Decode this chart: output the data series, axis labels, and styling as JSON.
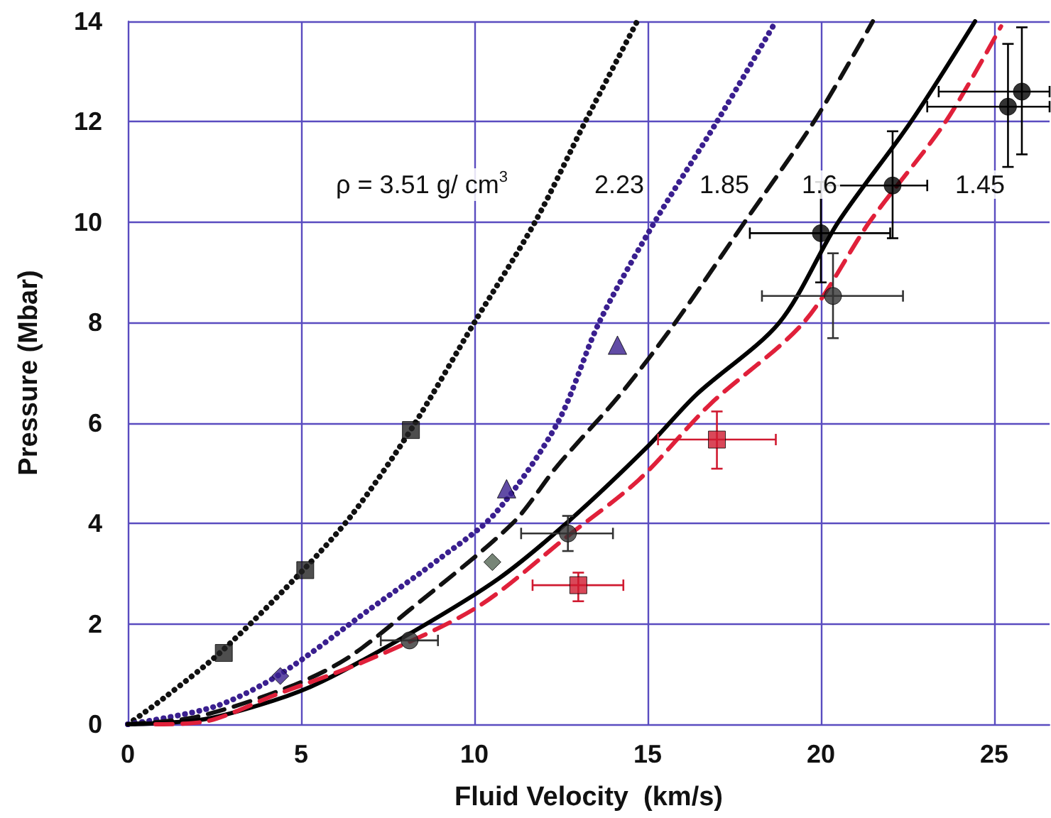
{
  "chart_data": {
    "type": "line",
    "xlabel": "Fluid Velocity  (km/s)",
    "ylabel": "Pressure (Mbar)",
    "xlim": [
      0,
      26.6
    ],
    "xticks": [
      0,
      5,
      10,
      15,
      20,
      25
    ],
    "ylim": [
      0,
      14
    ],
    "yticks": [
      0,
      2,
      4,
      6,
      8,
      10,
      12,
      14
    ],
    "grid": true,
    "series": [
      {
        "type": "line",
        "color": "#111111",
        "line_style": "dotted",
        "marker": "none",
        "x": [
          0,
          1,
          2.7,
          5.1,
          6.5,
          8.2,
          10,
          11.75,
          13.2,
          14.7
        ],
        "values": [
          0,
          0.5,
          1.45,
          3.1,
          4.2,
          5.9,
          8,
          10,
          12,
          14
        ]
      },
      {
        "type": "line",
        "color": "#3a1f8f",
        "line_style": "dotted",
        "marker": "none",
        "x": [
          0,
          2.5,
          4.4,
          7,
          9,
          10.6,
          12.4,
          13.6,
          15.2,
          17,
          18.7
        ],
        "values": [
          0,
          0.35,
          1.0,
          2.3,
          3.3,
          4.2,
          6,
          8,
          10,
          12,
          14
        ]
      },
      {
        "type": "line",
        "color": "#111111",
        "line_style": "dashed",
        "marker": "none",
        "x": [
          0,
          2,
          4.65,
          6.3,
          8.1,
          11.1,
          12.4,
          14.2,
          15.8,
          17.8,
          19.8,
          21.5
        ],
        "values": [
          0,
          0.15,
          0.74,
          1.3,
          2.26,
          4.0,
          5.15,
          6.56,
          8,
          10,
          12,
          14
        ]
      },
      {
        "type": "line",
        "color": "#000000",
        "line_style": "solid",
        "marker": "none",
        "x": [
          0,
          2.2,
          4.2,
          5.6,
          8.3,
          10.7,
          12.7,
          15,
          16.4,
          18.8,
          20.5,
          22.6,
          24.45
        ],
        "values": [
          0,
          0.1,
          0.47,
          0.85,
          1.87,
          2.9,
          4.03,
          5.53,
          6.56,
          8,
          10,
          12,
          14
        ]
      },
      {
        "type": "line",
        "color": "#e0203a",
        "line_style": "dashed",
        "marker": "none",
        "x": [
          0.8,
          2.2,
          4.2,
          7,
          10.1,
          12.7,
          14.75,
          16.8,
          19.5,
          21.4,
          23.6,
          25.2
        ],
        "values": [
          0,
          0.05,
          0.57,
          1.3,
          2.34,
          3.75,
          4.87,
          6.37,
          8,
          10,
          12,
          13.9
        ]
      },
      {
        "type": "scatter",
        "color": "#222222",
        "marker": "square",
        "x": [
          2.77,
          5.12,
          8.17
        ],
        "values": [
          1.42,
          3.07,
          5.86
        ]
      },
      {
        "type": "scatter",
        "color": "#3a1f8f",
        "marker": "diamond",
        "x": [
          4.4
        ],
        "values": [
          0.96
        ]
      },
      {
        "type": "scatter",
        "color": "#3a1f8f",
        "marker": "triangle",
        "x": [
          10.93,
          14.13
        ],
        "values": [
          4.69,
          7.55
        ]
      },
      {
        "type": "scatter",
        "color": "#556655",
        "marker": "diamond",
        "x": [
          10.52
        ],
        "values": [
          3.23
        ]
      },
      {
        "type": "scatter",
        "color": "#333333",
        "marker": "circle",
        "x": [
          8.13,
          12.7,
          20.35
        ],
        "values": [
          1.67,
          3.8,
          8.53
        ],
        "errors": [
          null,
          [
            3.45,
            4.15
          ],
          [
            7.69,
            9.38
          ]
        ],
        "xerrors": [
          [
            7.3,
            8.95
          ],
          [
            11.35,
            14.0
          ],
          [
            18.3,
            22.37
          ]
        ]
      },
      {
        "type": "scatter",
        "color": "#000000",
        "marker": "circle",
        "x": [
          20.0,
          22.07,
          25.4,
          25.8
        ],
        "values": [
          9.78,
          10.73,
          12.3,
          12.6
        ],
        "errors": [
          [
            8.8,
            10.8
          ],
          [
            9.68,
            11.81
          ],
          [
            11.1,
            13.55
          ],
          [
            11.35,
            13.88
          ]
        ],
        "xerrors": [
          [
            17.95,
            22.0
          ],
          [
            20.1,
            23.07
          ],
          [
            23.07,
            26.6
          ],
          [
            23.4,
            26.6
          ]
        ]
      },
      {
        "type": "scatter",
        "color": "#d01a30",
        "marker": "square",
        "x": [
          13.0,
          17.0
        ],
        "values": [
          2.77,
          5.67
        ],
        "errors": [
          [
            2.45,
            3.02
          ],
          [
            5.09,
            6.23
          ]
        ],
        "xerrors": [
          [
            11.68,
            14.3
          ],
          [
            15.3,
            18.7
          ]
        ]
      }
    ],
    "annotations": [
      "ρ = 3.51 g/ cm$^{3}$",
      "2.23",
      "1.85",
      "1.6",
      "1.45"
    ]
  }
}
